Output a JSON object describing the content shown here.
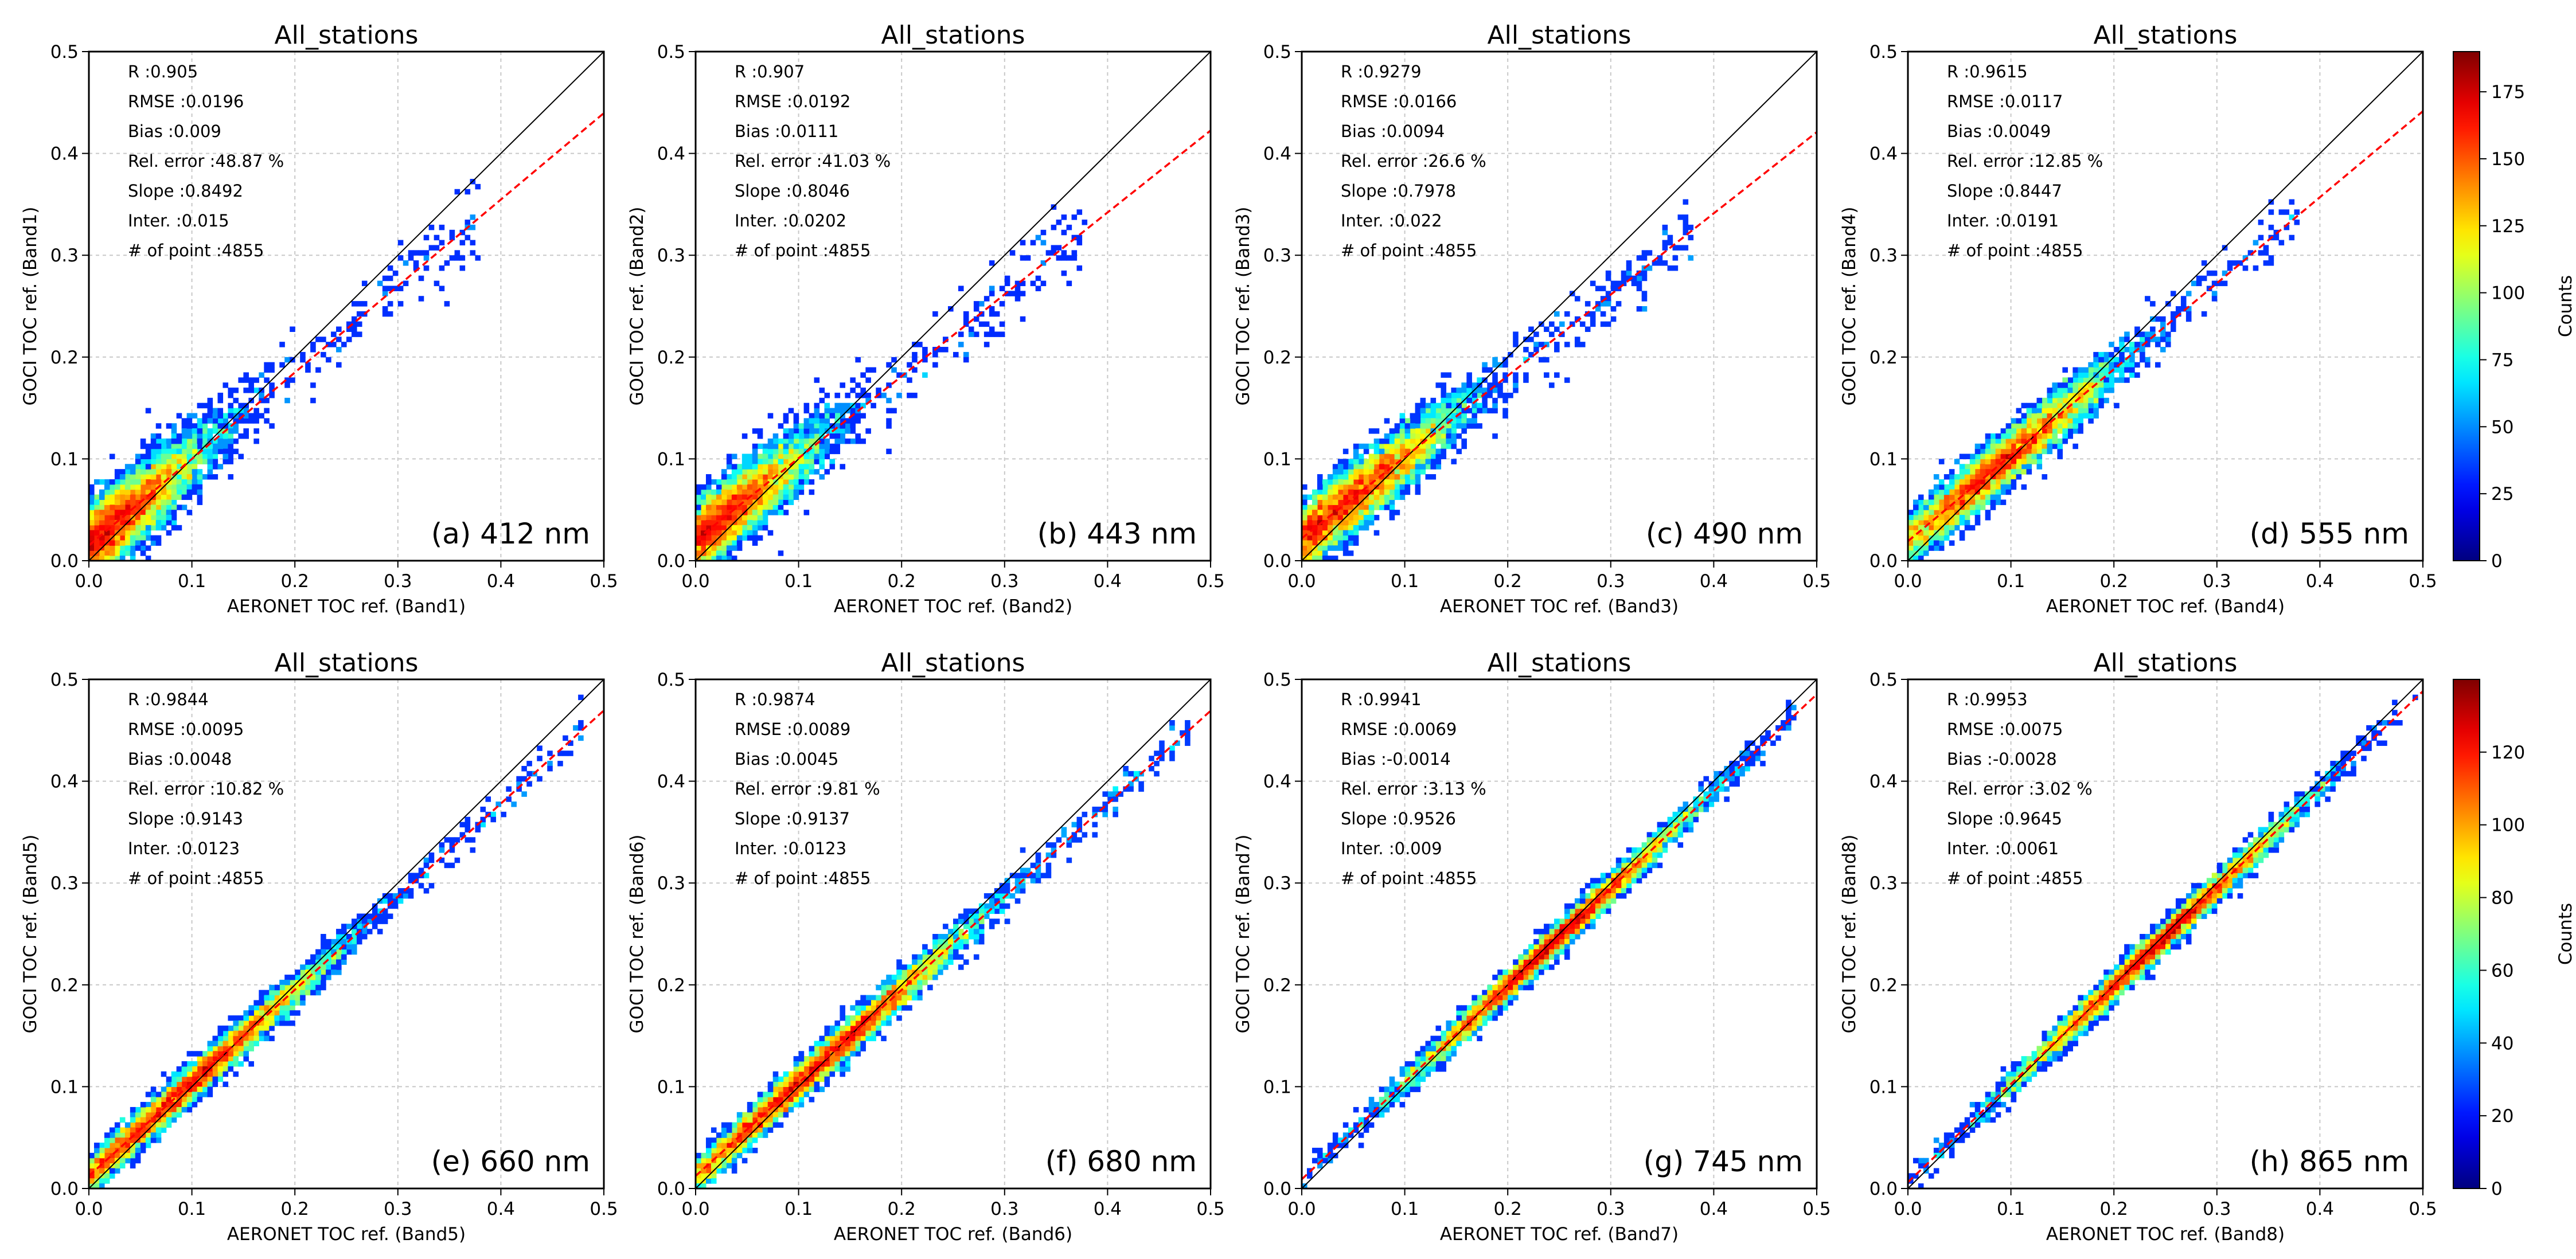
{
  "chart_data": [
    {
      "type": "heatmap",
      "panel": "a",
      "title": "All_stations",
      "panel_label": "(a) 412 nm",
      "xlabel": "AERONET TOC ref. (Band1)",
      "ylabel": "GOCI TOC ref. (Band1)",
      "xlim": [
        0,
        0.5
      ],
      "ylim": [
        0,
        0.5
      ],
      "xticks": [
        "0.0",
        "0.1",
        "0.2",
        "0.3",
        "0.4",
        "0.5"
      ],
      "yticks": [
        "0.0",
        "0.1",
        "0.2",
        "0.3",
        "0.4",
        "0.5"
      ],
      "stats": [
        "R    :0.905",
        "RMSE :0.0196",
        "Bias :0.009",
        "Rel. error :48.87 %",
        "Slope :0.8492",
        "Inter. :0.015",
        "# of point :4855"
      ],
      "slope": 0.8492,
      "intercept": 0.015,
      "colorbar": 0
    },
    {
      "type": "heatmap",
      "panel": "b",
      "title": "All_stations",
      "panel_label": "(b) 443 nm",
      "xlabel": "AERONET TOC ref. (Band2)",
      "ylabel": "GOCI TOC ref. (Band2)",
      "xlim": [
        0,
        0.5
      ],
      "ylim": [
        0,
        0.5
      ],
      "xticks": [
        "0.0",
        "0.1",
        "0.2",
        "0.3",
        "0.4",
        "0.5"
      ],
      "yticks": [
        "0.0",
        "0.1",
        "0.2",
        "0.3",
        "0.4",
        "0.5"
      ],
      "stats": [
        "R    :0.907",
        "RMSE :0.0192",
        "Bias :0.0111",
        "Rel. error :41.03 %",
        "Slope :0.8046",
        "Inter. :0.0202",
        "# of point :4855"
      ],
      "slope": 0.8046,
      "intercept": 0.0202,
      "colorbar": 0
    },
    {
      "type": "heatmap",
      "panel": "c",
      "title": "All_stations",
      "panel_label": "(c) 490 nm",
      "xlabel": "AERONET TOC ref. (Band3)",
      "ylabel": "GOCI TOC ref. (Band3)",
      "xlim": [
        0,
        0.5
      ],
      "ylim": [
        0,
        0.5
      ],
      "xticks": [
        "0.0",
        "0.1",
        "0.2",
        "0.3",
        "0.4",
        "0.5"
      ],
      "yticks": [
        "0.0",
        "0.1",
        "0.2",
        "0.3",
        "0.4",
        "0.5"
      ],
      "stats": [
        "R    :0.9279",
        "RMSE :0.0166",
        "Bias :0.0094",
        "Rel. error :26.6 %",
        "Slope :0.7978",
        "Inter. :0.022",
        "# of point :4855"
      ],
      "slope": 0.7978,
      "intercept": 0.022,
      "colorbar": 0
    },
    {
      "type": "heatmap",
      "panel": "d",
      "title": "All_stations",
      "panel_label": "(d) 555 nm",
      "xlabel": "AERONET TOC ref. (Band4)",
      "ylabel": "GOCI TOC ref. (Band4)",
      "xlim": [
        0,
        0.5
      ],
      "ylim": [
        0,
        0.5
      ],
      "xticks": [
        "0.0",
        "0.1",
        "0.2",
        "0.3",
        "0.4",
        "0.5"
      ],
      "yticks": [
        "0.0",
        "0.1",
        "0.2",
        "0.3",
        "0.4",
        "0.5"
      ],
      "stats": [
        "R    :0.9615",
        "RMSE :0.0117",
        "Bias :0.0049",
        "Rel. error :12.85 %",
        "Slope :0.8447",
        "Inter. :0.0191",
        "# of point :4855"
      ],
      "slope": 0.8447,
      "intercept": 0.0191,
      "colorbar": 0
    },
    {
      "type": "heatmap",
      "panel": "e",
      "title": "All_stations",
      "panel_label": "(e) 660 nm",
      "xlabel": "AERONET TOC ref. (Band5)",
      "ylabel": "GOCI TOC ref. (Band5)",
      "xlim": [
        0,
        0.5
      ],
      "ylim": [
        0,
        0.5
      ],
      "xticks": [
        "0.0",
        "0.1",
        "0.2",
        "0.3",
        "0.4",
        "0.5"
      ],
      "yticks": [
        "0.0",
        "0.1",
        "0.2",
        "0.3",
        "0.4",
        "0.5"
      ],
      "stats": [
        "R    :0.9844",
        "RMSE :0.0095",
        "Bias :0.0048",
        "Rel. error :10.82 %",
        "Slope :0.9143",
        "Inter. :0.0123",
        "# of point :4855"
      ],
      "slope": 0.9143,
      "intercept": 0.0123,
      "colorbar": 1
    },
    {
      "type": "heatmap",
      "panel": "f",
      "title": "All_stations",
      "panel_label": "(f) 680 nm",
      "xlabel": "AERONET TOC ref. (Band6)",
      "ylabel": "GOCI TOC ref. (Band6)",
      "xlim": [
        0,
        0.5
      ],
      "ylim": [
        0,
        0.5
      ],
      "xticks": [
        "0.0",
        "0.1",
        "0.2",
        "0.3",
        "0.4",
        "0.5"
      ],
      "yticks": [
        "0.0",
        "0.1",
        "0.2",
        "0.3",
        "0.4",
        "0.5"
      ],
      "stats": [
        "R    :0.9874",
        "RMSE :0.0089",
        "Bias :0.0045",
        "Rel. error :9.81 %",
        "Slope :0.9137",
        "Inter. :0.0123",
        "# of point :4855"
      ],
      "slope": 0.9137,
      "intercept": 0.0123,
      "colorbar": 1
    },
    {
      "type": "heatmap",
      "panel": "g",
      "title": "All_stations",
      "panel_label": "(g) 745 nm",
      "xlabel": "AERONET TOC ref. (Band7)",
      "ylabel": "GOCI TOC ref. (Band7)",
      "xlim": [
        0,
        0.5
      ],
      "ylim": [
        0,
        0.5
      ],
      "xticks": [
        "0.0",
        "0.1",
        "0.2",
        "0.3",
        "0.4",
        "0.5"
      ],
      "yticks": [
        "0.0",
        "0.1",
        "0.2",
        "0.3",
        "0.4",
        "0.5"
      ],
      "stats": [
        "R    :0.9941",
        "RMSE :0.0069",
        "Bias :-0.0014",
        "Rel. error :3.13 %",
        "Slope :0.9526",
        "Inter. :0.009",
        "# of point :4855"
      ],
      "slope": 0.9526,
      "intercept": 0.009,
      "colorbar": 1
    },
    {
      "type": "heatmap",
      "panel": "h",
      "title": "All_stations",
      "panel_label": "(h) 865 nm",
      "xlabel": "AERONET TOC ref. (Band8)",
      "ylabel": "GOCI TOC ref. (Band8)",
      "xlim": [
        0,
        0.5
      ],
      "ylim": [
        0,
        0.5
      ],
      "xticks": [
        "0.0",
        "0.1",
        "0.2",
        "0.3",
        "0.4",
        "0.5"
      ],
      "yticks": [
        "0.0",
        "0.1",
        "0.2",
        "0.3",
        "0.4",
        "0.5"
      ],
      "stats": [
        "R    :0.9953",
        "RMSE :0.0075",
        "Bias :-0.0028",
        "Rel. error :3.02 %",
        "Slope :0.9645",
        "Inter. :0.0061",
        "# of point :4855"
      ],
      "slope": 0.9645,
      "intercept": 0.0061,
      "colorbar": 1
    }
  ],
  "colorbars": [
    {
      "label": "Counts",
      "range": [
        0,
        190
      ],
      "ticks": [
        0,
        25,
        50,
        75,
        100,
        125,
        150,
        175
      ],
      "tick_labels": [
        "0",
        "25",
        "50",
        "75",
        "100",
        "125",
        "150",
        "175"
      ]
    },
    {
      "label": "Counts",
      "range": [
        0,
        140
      ],
      "ticks": [
        0,
        20,
        40,
        60,
        80,
        100,
        120
      ],
      "tick_labels": [
        "0",
        "20",
        "40",
        "60",
        "80",
        "100",
        "120"
      ]
    }
  ],
  "colormap": [
    "#00007f",
    "#0000ff",
    "#007fff",
    "#00ffff",
    "#7fff7f",
    "#ffff00",
    "#ff7f00",
    "#ff0000",
    "#7f0000"
  ],
  "colors": {
    "fit_line": "#ff0000",
    "identity_line": "#000000",
    "grid": "#c8c8c8"
  }
}
